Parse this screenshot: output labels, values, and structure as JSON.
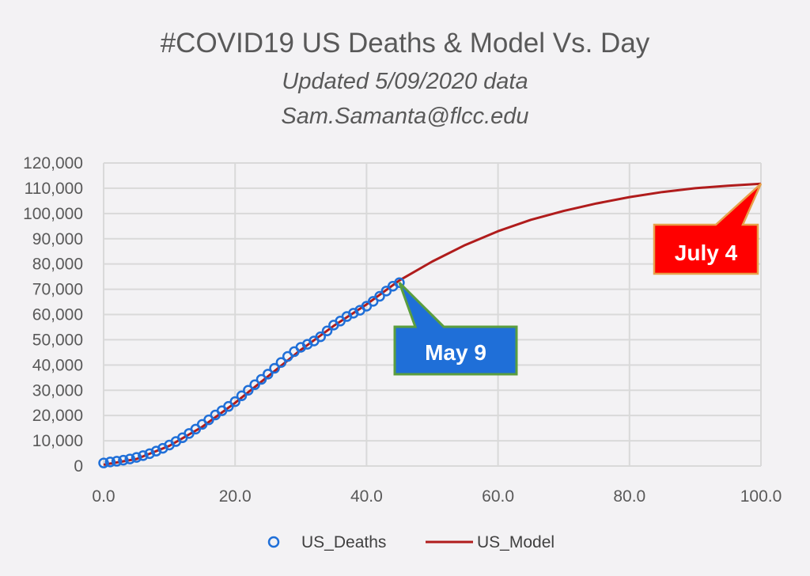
{
  "chart_data": {
    "type": "scatter",
    "title": "#COVID19  US Deaths & Model Vs. Day",
    "subtitle_lines": [
      "Updated 5/09/2020 data",
      "Sam.Samanta@flcc.edu"
    ],
    "xlabel": "",
    "ylabel": "",
    "xlim": [
      0,
      100
    ],
    "ylim": [
      0,
      120000
    ],
    "x_ticks": [
      0,
      20,
      40,
      60,
      80,
      100
    ],
    "x_tick_labels": [
      "0.0",
      "20.0",
      "40.0",
      "60.0",
      "80.0",
      "100.0"
    ],
    "y_ticks": [
      0,
      10000,
      20000,
      30000,
      40000,
      50000,
      60000,
      70000,
      80000,
      90000,
      100000,
      110000,
      120000
    ],
    "y_tick_labels": [
      "0",
      "10,000",
      "20,000",
      "30,000",
      "40,000",
      "50,000",
      "60,000",
      "70,000",
      "80,000",
      "90,000",
      "100,000",
      "110,000",
      "120,000"
    ],
    "grid": true,
    "legend_position": "bottom",
    "series": [
      {
        "name": "US_Deaths",
        "kind": "markers",
        "color": "#1f6fd8",
        "points": [
          [
            0,
            1200
          ],
          [
            1,
            1600
          ],
          [
            2,
            1900
          ],
          [
            3,
            2300
          ],
          [
            4,
            2800
          ],
          [
            5,
            3400
          ],
          [
            6,
            4100
          ],
          [
            7,
            4900
          ],
          [
            8,
            5900
          ],
          [
            9,
            7000
          ],
          [
            10,
            8300
          ],
          [
            11,
            9700
          ],
          [
            12,
            11200
          ],
          [
            13,
            12900
          ],
          [
            14,
            14600
          ],
          [
            15,
            16500
          ],
          [
            16,
            18300
          ],
          [
            17,
            20200
          ],
          [
            18,
            21900
          ],
          [
            19,
            23600
          ],
          [
            20,
            25500
          ],
          [
            21,
            27800
          ],
          [
            22,
            30000
          ],
          [
            23,
            32200
          ],
          [
            24,
            34300
          ],
          [
            25,
            36400
          ],
          [
            26,
            38700
          ],
          [
            27,
            41000
          ],
          [
            28,
            43400
          ],
          [
            29,
            45300
          ],
          [
            30,
            47000
          ],
          [
            31,
            48200
          ],
          [
            32,
            49500
          ],
          [
            33,
            51200
          ],
          [
            34,
            53500
          ],
          [
            35,
            55800
          ],
          [
            36,
            57400
          ],
          [
            37,
            59200
          ],
          [
            38,
            60500
          ],
          [
            39,
            61700
          ],
          [
            40,
            63300
          ],
          [
            41,
            65200
          ],
          [
            42,
            67200
          ],
          [
            43,
            69300
          ],
          [
            44,
            71200
          ],
          [
            45,
            72600
          ]
        ]
      },
      {
        "name": "US_Model",
        "kind": "line",
        "color": "#b01c1c",
        "points": [
          [
            0,
            500
          ],
          [
            5,
            2800
          ],
          [
            10,
            8000
          ],
          [
            15,
            15500
          ],
          [
            20,
            25000
          ],
          [
            25,
            35500
          ],
          [
            30,
            46000
          ],
          [
            35,
            55500
          ],
          [
            40,
            64000
          ],
          [
            45,
            73500
          ],
          [
            50,
            81000
          ],
          [
            55,
            87500
          ],
          [
            60,
            93000
          ],
          [
            65,
            97500
          ],
          [
            70,
            101000
          ],
          [
            75,
            104000
          ],
          [
            80,
            106500
          ],
          [
            85,
            108500
          ],
          [
            90,
            110000
          ],
          [
            95,
            111000
          ],
          [
            100,
            111800
          ]
        ]
      }
    ],
    "annotations": [
      {
        "text": "May 9",
        "x": 45,
        "y": 72600,
        "fill": "#1f6fd8",
        "border": "#5b9e3e"
      },
      {
        "text": "July 4",
        "x": 100,
        "y": 111800,
        "fill": "#ff0000",
        "border": "#e8a04a"
      }
    ]
  }
}
